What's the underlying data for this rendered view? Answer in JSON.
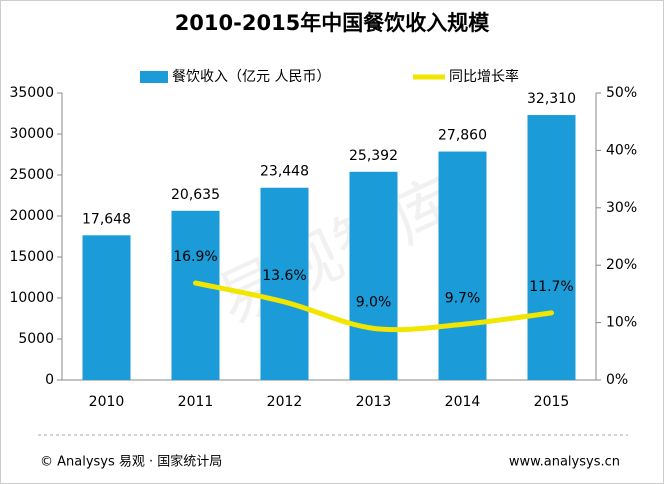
{
  "chart_data": {
    "type": "bar_line",
    "title": "2010-2015年中国餐饮收入规模",
    "watermark": "易观智库",
    "categories": [
      "2010",
      "2011",
      "2012",
      "2013",
      "2014",
      "2015"
    ],
    "series": [
      {
        "name": "餐饮收入（亿元 人民币）",
        "type": "bar",
        "color": "#1b9bd7",
        "values": [
          17648,
          20635,
          23448,
          25392,
          27860,
          32310
        ],
        "value_labels": [
          "17,648",
          "20,635",
          "23,448",
          "25,392",
          "27,860",
          "32,310"
        ]
      },
      {
        "name": "同比增长率",
        "type": "line",
        "axis": "y2",
        "color": "#f2e600",
        "values": [
          null,
          16.9,
          13.6,
          9.0,
          9.7,
          11.7
        ],
        "value_labels": [
          null,
          "16.9%",
          "13.6%",
          "9.0%",
          "9.7%",
          "11.7%"
        ]
      }
    ],
    "ylim": [
      0,
      35000
    ],
    "yticks": [
      0,
      5000,
      10000,
      15000,
      20000,
      25000,
      30000,
      35000
    ],
    "y2lim": [
      0,
      50
    ],
    "y2ticks": [
      {
        "value": 0,
        "label": "0%"
      },
      {
        "value": 10,
        "label": "10%"
      },
      {
        "value": 20,
        "label": "20%"
      },
      {
        "value": 30,
        "label": "30%"
      },
      {
        "value": 40,
        "label": "40%"
      },
      {
        "value": 50,
        "label": "50%"
      }
    ],
    "source": "© Analysys 易观 · 国家统计局",
    "website": "www.analysys.cn"
  }
}
